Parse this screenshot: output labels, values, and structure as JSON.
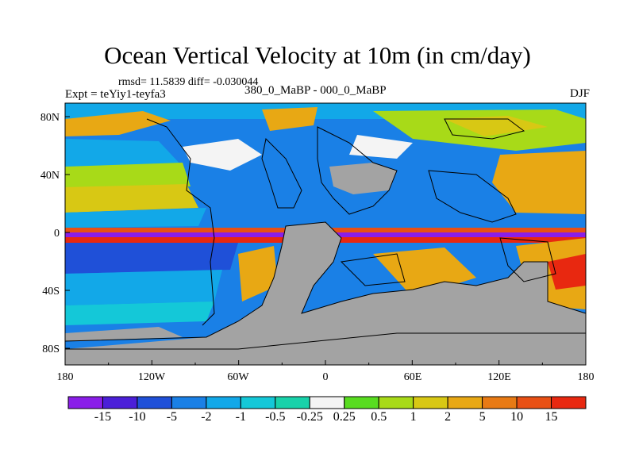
{
  "title": "Ocean Vertical Velocity at 10m (in cm/day)",
  "stats": "rmsd= 11.5839 diff= -0.030044",
  "subtitle_left": "Expt = teYiy1-teyfa3",
  "subtitle_center": "380_0_MaBP - 000_0_MaBP",
  "subtitle_right": "DJF",
  "y_axis": {
    "ticks": [
      "80N",
      "40N",
      "0",
      "40S",
      "80S"
    ]
  },
  "x_axis": {
    "ticks": [
      "180",
      "120W",
      "60W",
      "0",
      "60E",
      "120E",
      "180"
    ]
  },
  "colorbar": {
    "labels": [
      "-15",
      "-10",
      "-5",
      "-2",
      "-1",
      "-0.5",
      "-0.25",
      "0.25",
      "0.5",
      "1",
      "2",
      "5",
      "10",
      "15"
    ],
    "colors": [
      "#8a1ee8",
      "#4b1fd8",
      "#1f50d8",
      "#1a80e6",
      "#12a8e8",
      "#14c8d8",
      "#18d2aa",
      "#f4f4f4",
      "#58dc20",
      "#a8da18",
      "#d8c814",
      "#e8a814",
      "#e87a14",
      "#e85014",
      "#e82810"
    ]
  },
  "map_colors": {
    "land": "#a3a3a3",
    "coast": "#000000"
  }
}
